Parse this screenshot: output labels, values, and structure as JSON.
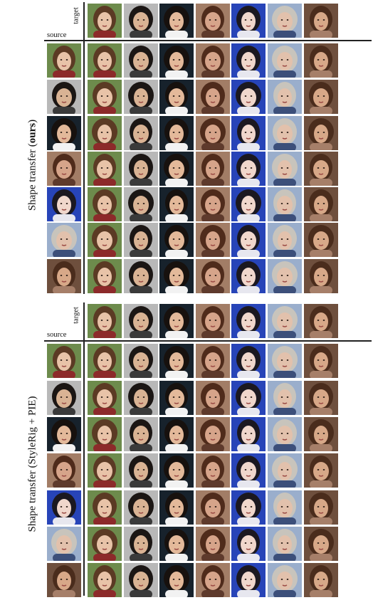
{
  "labels": {
    "target": "target",
    "source": "source",
    "top_prefix": "Shape transfer (",
    "top_bold": "ours",
    "top_suffix": ")",
    "bottom_label": "Shape transfer (StyleRig + PIE)"
  },
  "faces": [
    {
      "name": "woman-red-lips",
      "bg": "#6d8b4c",
      "hair": "#5b3a24",
      "skin": "#e8c3a8",
      "shirt": "#8c2a2a"
    },
    {
      "name": "asian-woman-black-hair",
      "bg": "#b8b8b8",
      "hair": "#1b1614",
      "skin": "#d9b394",
      "shirt": "#3a3a3a"
    },
    {
      "name": "young-man-suit",
      "bg": "#17222c",
      "hair": "#17110e",
      "skin": "#e3b99a",
      "shirt": "#f2f2f2"
    },
    {
      "name": "woman-brown-hair",
      "bg": "#a27d66",
      "hair": "#4f2b1b",
      "skin": "#d6a48a",
      "shirt": "#5e3a2c"
    },
    {
      "name": "asian-woman-blue-bg",
      "bg": "#2744b8",
      "hair": "#1b1820",
      "skin": "#f0d7cc",
      "shirt": "#e7e7ef"
    },
    {
      "name": "blond-man",
      "bg": "#9aaecc",
      "hair": "#c8c4bc",
      "skin": "#e2c1ac",
      "shirt": "#3c4f7a"
    },
    {
      "name": "woman-brown-hair-smile",
      "bg": "#6e4f3d",
      "hair": "#4a2c1c",
      "skin": "#d7a888",
      "shirt": "#a67f69"
    }
  ]
}
